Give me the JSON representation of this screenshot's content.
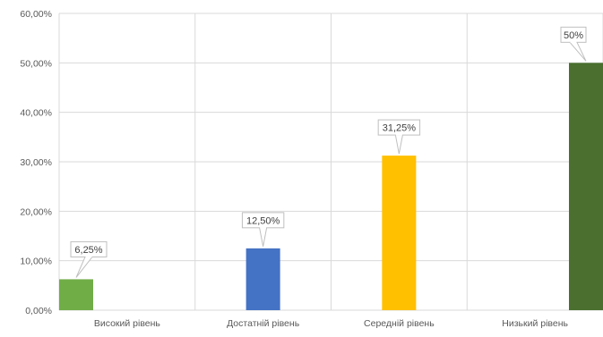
{
  "chart_data": {
    "type": "bar",
    "title": "",
    "xlabel": "",
    "ylabel": "",
    "ylim": [
      0,
      60
    ],
    "grid": true,
    "yticks": [
      {
        "value": 0,
        "label": "0,00%"
      },
      {
        "value": 10,
        "label": "10,00%"
      },
      {
        "value": 20,
        "label": "20,00%"
      },
      {
        "value": 30,
        "label": "30,00%"
      },
      {
        "value": 40,
        "label": "40,00%"
      },
      {
        "value": 50,
        "label": "50,00%"
      },
      {
        "value": 60,
        "label": "60,00%"
      }
    ],
    "categories": [
      "Високий рівень",
      "Достатній рівень",
      "Середній рівень",
      "Низький рівень"
    ],
    "values": [
      6.25,
      12.5,
      31.25,
      50
    ],
    "data_labels": [
      "6,25%",
      "12,50%",
      "31,25%",
      "50%"
    ],
    "colors": [
      "#70ad47",
      "#4472c4",
      "#ffc000",
      "#4a6f2e"
    ],
    "colors_meta": {
      "gridline": "#d9d9d9",
      "axis_text": "#595959",
      "label_border": "#bfbfbf"
    }
  }
}
